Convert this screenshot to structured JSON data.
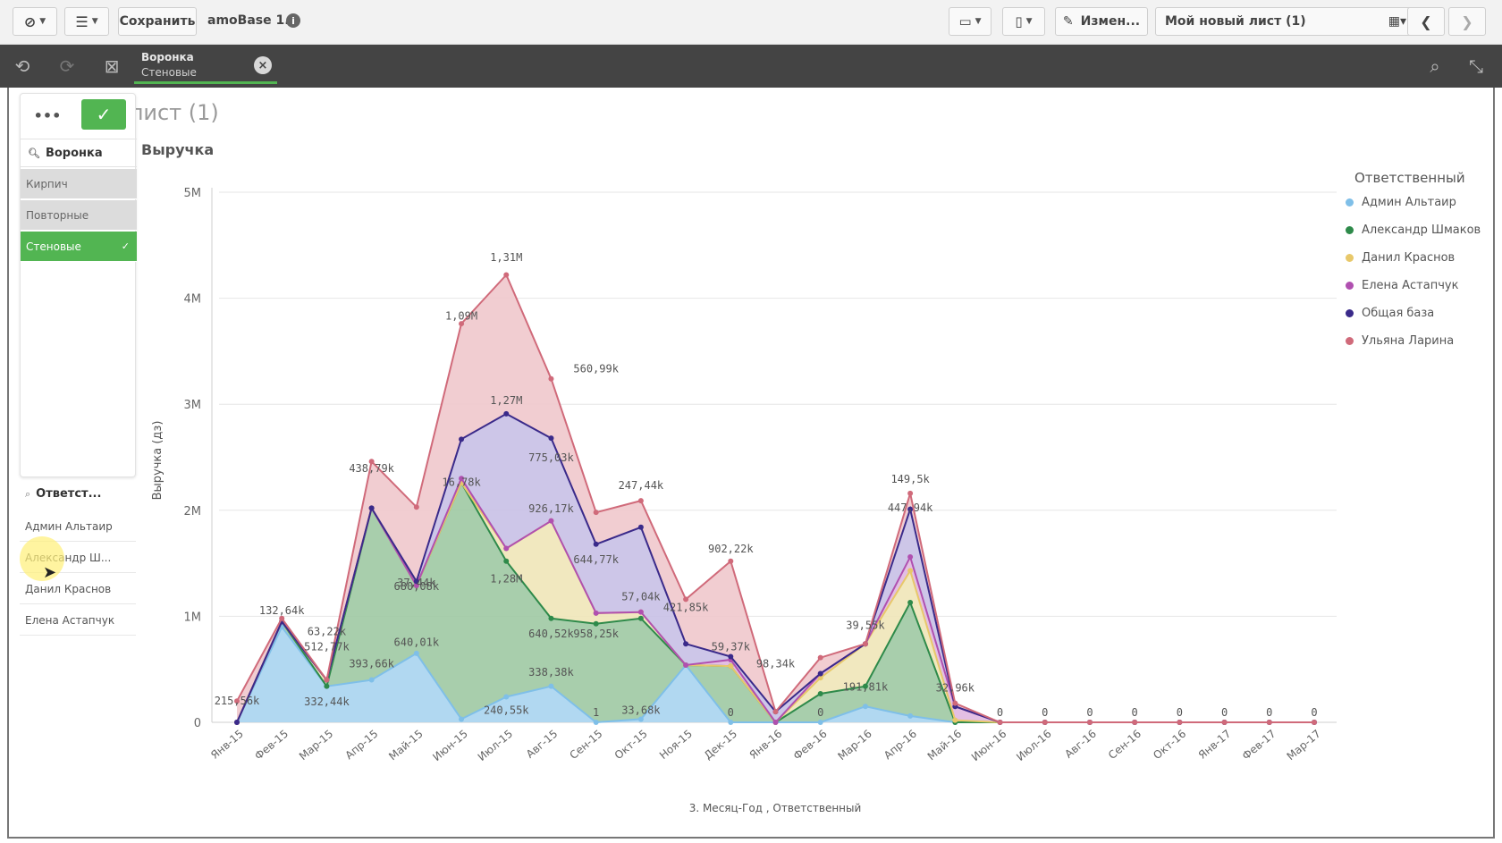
{
  "toolbar": {
    "save_label": "Сохранить",
    "app_name": "amoBase 1.0",
    "edit_label": "Измен...",
    "sheet_name": "Мой новый лист (1)"
  },
  "selection": {
    "field": "Воронка",
    "value": "Стеновые"
  },
  "sheet_title": "лист (1)",
  "chart_title": "Выручка",
  "filter_funnel": {
    "title": "Воронка",
    "items": [
      {
        "label": "Кирпич",
        "state": "excluded"
      },
      {
        "label": "Повторные",
        "state": "excluded"
      },
      {
        "label": "Стеновые",
        "state": "selected"
      }
    ]
  },
  "filter_owner": {
    "title": "Ответст...",
    "items": [
      "Админ Альтаир",
      "Александр Ш...",
      "Данил Краснов",
      "Елена Астапчук"
    ]
  },
  "legend": {
    "title": "Ответственный",
    "items": [
      {
        "label": "Админ Альтаир",
        "color": "#7fbfe8"
      },
      {
        "label": "Александр Шмаков",
        "color": "#2e8a4a"
      },
      {
        "label": "Данил Краснов",
        "color": "#e8c86a"
      },
      {
        "label": "Елена Астапчук",
        "color": "#b050b0"
      },
      {
        "label": "Общая база",
        "color": "#3a2a8a"
      },
      {
        "label": "Ульяна Ларина",
        "color": "#d06a7a"
      }
    ]
  },
  "chart_data": {
    "type": "area",
    "stacked": true,
    "title": "Выручка",
    "xlabel": "3. Месяц-Год , Ответственный",
    "ylabel": "Выручка (дз)",
    "ylim": [
      0,
      5000000
    ],
    "yticks": [
      "0",
      "1M",
      "2M",
      "3M",
      "4M",
      "5M"
    ],
    "categories": [
      "Янв-15",
      "Фев-15",
      "Мар-15",
      "Апр-15",
      "Май-15",
      "Июн-15",
      "Июл-15",
      "Авг-15",
      "Сен-15",
      "Окт-15",
      "Ноя-15",
      "Дек-15",
      "Янв-16",
      "Фев-16",
      "Мар-16",
      "Апр-16",
      "Май-16",
      "Июн-16",
      "Июл-16",
      "Авг-16",
      "Сен-16",
      "Окт-16",
      "Янв-17",
      "Фев-17",
      "Мар-17"
    ],
    "series": [
      {
        "name": "Админ Альтаир",
        "color": "#a9d4ef",
        "line": "#7fbfe8",
        "values": [
          0,
          900000,
          340000,
          400000,
          650000,
          30000,
          240000,
          340000,
          0,
          30000,
          540000,
          0,
          0,
          0,
          150000,
          60000,
          0,
          0,
          0,
          0,
          0,
          0,
          0,
          0,
          0
        ]
      },
      {
        "name": "Александр Шмаков",
        "color": "#9ec9a3",
        "line": "#2e8a4a",
        "values": [
          0,
          50000,
          0,
          1620000,
          640000,
          2230000,
          1280000,
          640000,
          930000,
          950000,
          0,
          530000,
          0,
          270000,
          190000,
          1070000,
          0,
          0,
          0,
          0,
          0,
          0,
          0,
          0,
          0
        ]
      },
      {
        "name": "Данил Краснов",
        "color": "#efe6b8",
        "line": "#e8c86a",
        "values": [
          0,
          0,
          60000,
          0,
          0,
          0,
          120000,
          920000,
          100000,
          60000,
          0,
          0,
          0,
          150000,
          400000,
          300000,
          20000,
          0,
          0,
          0,
          0,
          0,
          0,
          0,
          0
        ]
      },
      {
        "name": "Елена Астапчук",
        "color": "#e0b8e0",
        "line": "#b050b0",
        "values": [
          0,
          0,
          0,
          0,
          0,
          40000,
          0,
          0,
          0,
          0,
          0,
          60000,
          0,
          40000,
          0,
          130000,
          130000,
          0,
          0,
          0,
          0,
          0,
          0,
          0,
          0
        ]
      },
      {
        "name": "Общая база",
        "color": "#c8c0e6",
        "line": "#3a2a8a",
        "values": [
          0,
          0,
          0,
          0,
          40000,
          370000,
          1270000,
          780000,
          650000,
          800000,
          200000,
          30000,
          100000,
          0,
          0,
          450000,
          0,
          0,
          0,
          0,
          0,
          0,
          0,
          0,
          0
        ]
      },
      {
        "name": "Ульяна Ларина",
        "color": "#efc8cc",
        "line": "#d06a7a",
        "values": [
          200000,
          30000,
          0,
          440000,
          700000,
          1090000,
          1310000,
          560000,
          300000,
          250000,
          420000,
          900000,
          0,
          150000,
          0,
          150000,
          30000,
          0,
          0,
          0,
          0,
          0,
          0,
          0,
          0
        ]
      }
    ],
    "data_labels": [
      {
        "text": "132,64k",
        "cat": 1,
        "y": 1020000
      },
      {
        "text": "215,56k",
        "cat": 0,
        "y": 170000
      },
      {
        "text": "332,44k",
        "cat": 2,
        "y": 160000
      },
      {
        "text": "512,77k",
        "cat": 2,
        "y": 680000
      },
      {
        "text": "63,22k",
        "cat": 2,
        "y": 820000
      },
      {
        "text": "438,79k",
        "cat": 3,
        "y": 2360000
      },
      {
        "text": "393,66k",
        "cat": 3,
        "y": 520000
      },
      {
        "text": "680,08k",
        "cat": 4,
        "y": 1250000
      },
      {
        "text": "640,01k",
        "cat": 4,
        "y": 720000
      },
      {
        "text": "37,44k",
        "cat": 4,
        "y": 1280000
      },
      {
        "text": "1,09M",
        "cat": 5,
        "y": 3800000
      },
      {
        "text": "16,78k",
        "cat": 5,
        "y": 2230000
      },
      {
        "text": "1,31M",
        "cat": 6,
        "y": 4350000
      },
      {
        "text": "1,27M",
        "cat": 6,
        "y": 3000000
      },
      {
        "text": "1,28M",
        "cat": 6,
        "y": 1320000
      },
      {
        "text": "240,55k",
        "cat": 6,
        "y": 80000
      },
      {
        "text": "775,03k",
        "cat": 7,
        "y": 2460000
      },
      {
        "text": "926,17k",
        "cat": 7,
        "y": 1980000
      },
      {
        "text": "640,52k",
        "cat": 7,
        "y": 800000
      },
      {
        "text": "338,38k",
        "cat": 7,
        "y": 440000
      },
      {
        "text": "560,99k",
        "cat": 8,
        "y": 3300000
      },
      {
        "text": "644,77k",
        "cat": 8,
        "y": 1500000
      },
      {
        "text": "958,25k",
        "cat": 8,
        "y": 800000
      },
      {
        "text": "1",
        "cat": 8,
        "y": 60000
      },
      {
        "text": "33,68k",
        "cat": 9,
        "y": 80000
      },
      {
        "text": "247,44k",
        "cat": 9,
        "y": 2200000
      },
      {
        "text": "57,04k",
        "cat": 9,
        "y": 1150000
      },
      {
        "text": "421,85k",
        "cat": 10,
        "y": 1050000
      },
      {
        "text": "902,22k",
        "cat": 11,
        "y": 1600000
      },
      {
        "text": "59,37k",
        "cat": 11,
        "y": 680000
      },
      {
        "text": "0",
        "cat": 11,
        "y": 60000
      },
      {
        "text": "98,34k",
        "cat": 12,
        "y": 520000
      },
      {
        "text": "0",
        "cat": 13,
        "y": 60000
      },
      {
        "text": "39,55k",
        "cat": 14,
        "y": 880000
      },
      {
        "text": "191,81k",
        "cat": 14,
        "y": 300000
      },
      {
        "text": "149,5k",
        "cat": 15,
        "y": 2260000
      },
      {
        "text": "447,94k",
        "cat": 15,
        "y": 1990000
      },
      {
        "text": "32,96k",
        "cat": 16,
        "y": 290000
      },
      {
        "text": "0",
        "cat": 17,
        "y": 60000
      },
      {
        "text": "0",
        "cat": 18,
        "y": 60000
      },
      {
        "text": "0",
        "cat": 19,
        "y": 60000
      },
      {
        "text": "0",
        "cat": 20,
        "y": 60000
      },
      {
        "text": "0",
        "cat": 21,
        "y": 60000
      },
      {
        "text": "0",
        "cat": 22,
        "y": 60000
      },
      {
        "text": "0",
        "cat": 23,
        "y": 60000
      },
      {
        "text": "0",
        "cat": 24,
        "y": 60000
      }
    ]
  }
}
